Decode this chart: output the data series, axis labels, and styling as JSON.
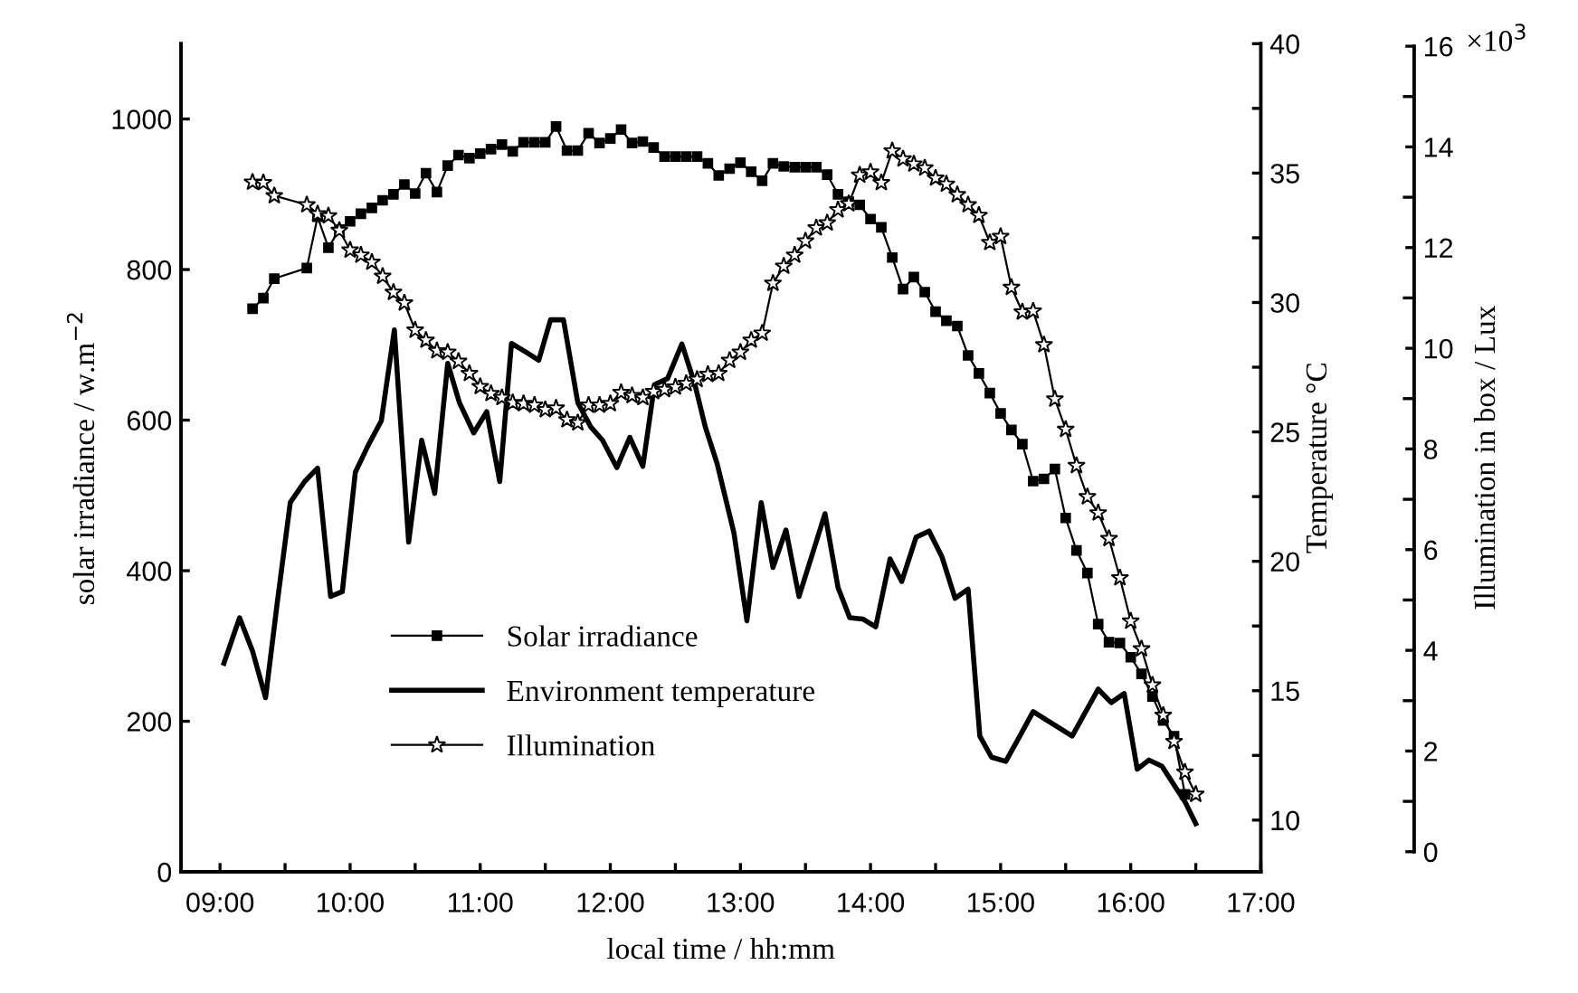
{
  "chart_data": {
    "type": "line",
    "xlabel": "local time / hh:mm",
    "ylabel": "solar irradiance / w.m$^{−2}$",
    "y2label": "Temperature °C",
    "y3label": "Illumination in box / Lux",
    "annotations": [
      "×10$^{3}$"
    ],
    "xlim": [
      8.7,
      17
    ],
    "xticks": [
      {
        "value": 9,
        "label": "09:00"
      },
      {
        "value": 9.5,
        "label": null
      },
      {
        "value": 10,
        "label": "10:00"
      },
      {
        "value": 10.5,
        "label": null
      },
      {
        "value": 11,
        "label": "11:00"
      },
      {
        "value": 11.5,
        "label": null
      },
      {
        "value": 12,
        "label": "12:00"
      },
      {
        "value": 12.5,
        "label": null
      },
      {
        "value": 13,
        "label": "13:00"
      },
      {
        "value": 13.5,
        "label": null
      },
      {
        "value": 14,
        "label": "14:00"
      },
      {
        "value": 14.5,
        "label": null
      },
      {
        "value": 15,
        "label": "15:00"
      },
      {
        "value": 15.5,
        "label": null
      },
      {
        "value": 16,
        "label": "16:00"
      },
      {
        "value": 16.5,
        "label": null
      },
      {
        "value": 17,
        "label": "17:00"
      }
    ],
    "ylim": [
      0,
      1100
    ],
    "yticks": [
      0,
      200,
      400,
      600,
      800,
      1000
    ],
    "y2lim": [
      8,
      40
    ],
    "y2ticks": [
      10,
      {
        "value": 12.5,
        "label": null
      },
      15,
      {
        "value": 17.5,
        "label": null
      },
      20,
      {
        "value": 22.5,
        "label": null
      },
      25,
      {
        "value": 27.5,
        "label": null
      },
      30,
      {
        "value": 32.5,
        "label": null
      },
      35,
      {
        "value": 37.5,
        "label": null
      },
      40
    ],
    "y3lim": [
      -0.4,
      16.05
    ],
    "y3ticks": [
      0,
      2,
      4,
      6,
      8,
      10,
      12,
      14,
      16
    ],
    "legend": "bottom left",
    "grid": false,
    "series": [
      {
        "name": "Solar irradiance",
        "color": "#000000",
        "marker": "square",
        "line_style": "solid",
        "x": [
          9.25,
          9.333,
          9.417,
          9.667,
          9.75,
          9.833,
          9.917,
          10,
          10.083,
          10.167,
          10.25,
          10.333,
          10.417,
          10.5,
          10.583,
          10.667,
          10.75,
          10.833,
          10.917,
          11,
          11.083,
          11.167,
          11.25,
          11.333,
          11.417,
          11.5,
          11.583,
          11.667,
          11.75,
          11.833,
          11.917,
          12,
          12.083,
          12.167,
          12.25,
          12.333,
          12.417,
          12.5,
          12.583,
          12.667,
          12.75,
          12.833,
          12.917,
          13,
          13.083,
          13.167,
          13.25,
          13.333,
          13.417,
          13.5,
          13.583,
          13.667,
          13.75,
          13.833,
          13.917,
          14,
          14.083,
          14.167,
          14.25,
          14.333,
          14.417,
          14.5,
          14.583,
          14.667,
          14.75,
          14.833,
          14.917,
          15,
          15.083,
          15.167,
          15.25,
          15.333,
          15.417,
          15.5,
          15.583,
          15.667,
          15.75,
          15.833,
          15.917,
          16,
          16.083,
          16.167,
          16.25,
          16.333,
          16.417
        ],
        "values": [
          748,
          762,
          788,
          802,
          870,
          829,
          853,
          864,
          874,
          882,
          892,
          900,
          913,
          901,
          928,
          903,
          938,
          952,
          948,
          954,
          960,
          966,
          957,
          969,
          969,
          969,
          990,
          958,
          958,
          981,
          968,
          974,
          986,
          968,
          970,
          962,
          950,
          950,
          950,
          950,
          941,
          925,
          934,
          942,
          930,
          918,
          941,
          937,
          936,
          936,
          936,
          926,
          900,
          890,
          886,
          867,
          856,
          816,
          774,
          790,
          770,
          744,
          732,
          725,
          686,
          662,
          636,
          609,
          587,
          568,
          519,
          522,
          535,
          470,
          427,
          397,
          329,
          305,
          304,
          285,
          263,
          233,
          201,
          180,
          103
        ]
      },
      {
        "name": "Environment temperature",
        "color": "#000000",
        "marker": "none",
        "line_style": "solid",
        "axis": "y2",
        "x": [
          9.03,
          9.15,
          9.25,
          9.35,
          9.44,
          9.54,
          9.65,
          9.75,
          9.85,
          9.94,
          10.04,
          10.14,
          10.24,
          10.34,
          10.45,
          10.55,
          10.65,
          10.75,
          10.84,
          10.95,
          11.05,
          11.15,
          11.24,
          11.34,
          11.45,
          11.54,
          11.64,
          11.75,
          11.85,
          11.94,
          12.05,
          12.15,
          12.25,
          12.34,
          12.44,
          12.55,
          12.65,
          12.73,
          12.82,
          12.95,
          13.05,
          13.16,
          13.25,
          13.35,
          13.45,
          13.56,
          13.65,
          13.75,
          13.84,
          13.94,
          14.04,
          14.15,
          14.24,
          14.35,
          14.45,
          14.55,
          14.65,
          14.75,
          14.84,
          14.93,
          15.04,
          15.14,
          15.25,
          15.55,
          15.75,
          15.85,
          15.95,
          16.05,
          16.14,
          16.24,
          16.42,
          16.5
        ],
        "values": [
          16.06,
          17.82,
          16.53,
          14.73,
          18.4,
          22.27,
          23.08,
          23.6,
          18.64,
          18.83,
          23.44,
          24.49,
          25.43,
          28.94,
          20.74,
          24.68,
          22.62,
          27.65,
          26.13,
          24.96,
          25.78,
          23.08,
          28.42,
          28.12,
          27.77,
          29.33,
          29.33,
          26.13,
          25.19,
          24.68,
          23.62,
          24.79,
          23.67,
          26.83,
          27.06,
          28.4,
          26.83,
          25.19,
          23.79,
          21.1,
          17.7,
          22.27,
          19.76,
          21.21,
          18.64,
          20.39,
          21.84,
          18.99,
          17.82,
          17.77,
          17.47,
          20.09,
          19.22,
          20.93,
          21.17,
          20.16,
          18.57,
          18.92,
          13.25,
          12.43,
          12.27,
          13.18,
          14.19,
          13.25,
          15.06,
          14.54,
          14.89,
          11.97,
          12.32,
          12.08,
          10.68,
          9.86
        ]
      },
      {
        "name": "Illumination",
        "color": "#000000",
        "marker": "star",
        "line_style": "solid",
        "axis": "y3",
        "x": [
          9.25,
          9.333,
          9.417,
          9.667,
          9.75,
          9.833,
          9.917,
          10,
          10.083,
          10.167,
          10.25,
          10.333,
          10.417,
          10.5,
          10.583,
          10.667,
          10.75,
          10.833,
          10.917,
          11,
          11.083,
          11.167,
          11.25,
          11.333,
          11.417,
          11.5,
          11.583,
          11.667,
          11.75,
          11.833,
          11.917,
          12,
          12.083,
          12.167,
          12.25,
          12.333,
          12.417,
          12.5,
          12.583,
          12.667,
          12.75,
          12.833,
          12.917,
          13,
          13.083,
          13.167,
          13.25,
          13.333,
          13.417,
          13.5,
          13.583,
          13.667,
          13.75,
          13.833,
          13.917,
          14,
          14.083,
          14.167,
          14.25,
          14.333,
          14.417,
          14.5,
          14.583,
          14.667,
          14.75,
          14.833,
          14.917,
          15,
          15.083,
          15.167,
          15.25,
          15.333,
          15.417,
          15.5,
          15.583,
          15.667,
          15.75,
          15.833,
          15.917,
          16,
          16.083,
          16.167,
          16.25,
          16.333,
          16.417,
          16.5
        ],
        "values": [
          13.3,
          13.29,
          13.03,
          12.85,
          12.67,
          12.63,
          12.34,
          11.95,
          11.85,
          11.71,
          11.43,
          11.11,
          10.9,
          10.36,
          10.16,
          9.95,
          9.92,
          9.74,
          9.5,
          9.24,
          9.1,
          9.02,
          8.92,
          8.9,
          8.87,
          8.78,
          8.81,
          8.58,
          8.52,
          8.87,
          8.87,
          8.9,
          9.12,
          9.06,
          9.02,
          9.14,
          9.18,
          9.23,
          9.3,
          9.38,
          9.48,
          9.5,
          9.76,
          9.92,
          10.16,
          10.3,
          11.29,
          11.63,
          11.85,
          12.13,
          12.39,
          12.49,
          12.75,
          12.87,
          13.44,
          13.5,
          13.29,
          13.92,
          13.76,
          13.66,
          13.58,
          13.38,
          13.26,
          13.05,
          12.85,
          12.64,
          12.1,
          12.22,
          11.21,
          10.72,
          10.74,
          10.07,
          8.99,
          8.39,
          7.67,
          7.05,
          6.73,
          6.22,
          5.44,
          4.58,
          4.03,
          3.31,
          2.71,
          2.19,
          1.58,
          1.14
        ]
      }
    ]
  }
}
